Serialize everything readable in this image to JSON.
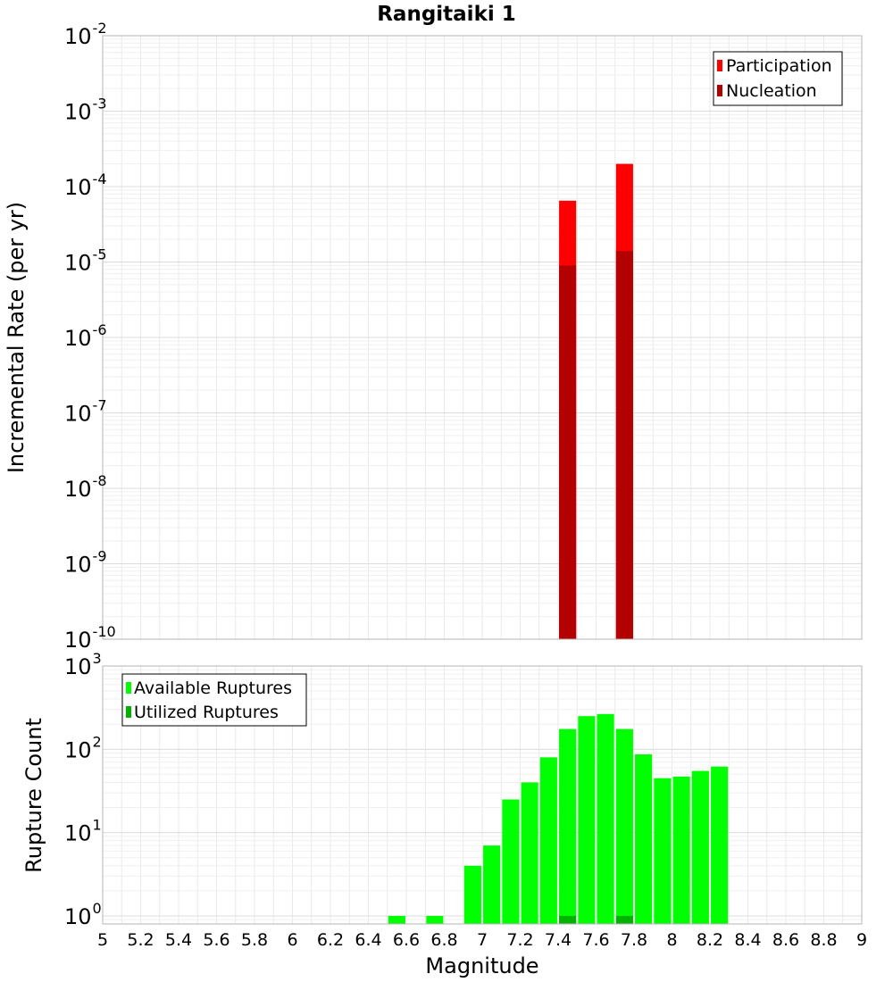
{
  "title": "Rangitaiki 1",
  "colors": {
    "participation": "#ff0000",
    "nucleation": "#b30000",
    "available": "#00ff00",
    "utilized": "#00b300",
    "grid": "#e9e9e9",
    "frame": "#b5b5b5"
  },
  "chart_data": [
    {
      "type": "bar",
      "title": "Rangitaiki 1",
      "xlabel": "Magnitude",
      "ylabel": "Incremental Rate (per yr)",
      "y_scale": "log",
      "xlim": [
        5,
        9
      ],
      "ylim": [
        1e-10,
        0.01
      ],
      "grid": true,
      "legend_position": "top-right",
      "y_tick_exponents": [
        "-10",
        "-9",
        "-8",
        "-7",
        "-6",
        "-5",
        "-4",
        "-3",
        "-2"
      ],
      "bar_width": 0.09,
      "series": [
        {
          "name": "Participation",
          "x": [
            7.45,
            7.75
          ],
          "values": [
            6.5e-05,
            0.0002
          ]
        },
        {
          "name": "Nucleation",
          "x": [
            7.45,
            7.75
          ],
          "values": [
            9e-06,
            1.4e-05
          ]
        }
      ]
    },
    {
      "type": "bar",
      "xlabel": "Magnitude",
      "ylabel": "Rupture Count",
      "y_scale": "log",
      "xlim": [
        5,
        9
      ],
      "ylim": [
        0.8,
        1000
      ],
      "grid": true,
      "legend_position": "top-left",
      "x_tick_labels": [
        "5",
        "5.2",
        "5.4",
        "5.6",
        "5.8",
        "6",
        "6.2",
        "6.4",
        "6.6",
        "6.8",
        "7",
        "7.2",
        "7.4",
        "7.6",
        "7.8",
        "8",
        "8.2",
        "8.4",
        "8.6",
        "8.8",
        "9"
      ],
      "y_tick_exponents": [
        "0",
        "1",
        "2",
        "3"
      ],
      "bar_width": 0.09,
      "series": [
        {
          "name": "Available Ruptures",
          "x": [
            6.55,
            6.75,
            6.95,
            7.05,
            7.15,
            7.25,
            7.35,
            7.45,
            7.55,
            7.65,
            7.75,
            7.85,
            7.95,
            8.05,
            8.15,
            8.25
          ],
          "values": [
            1,
            1,
            4,
            7,
            25,
            40,
            80,
            175,
            250,
            265,
            175,
            87,
            45,
            47,
            55,
            62
          ]
        },
        {
          "name": "Utilized Ruptures",
          "x": [
            7.45,
            7.75
          ],
          "values": [
            1,
            1
          ]
        }
      ]
    }
  ]
}
